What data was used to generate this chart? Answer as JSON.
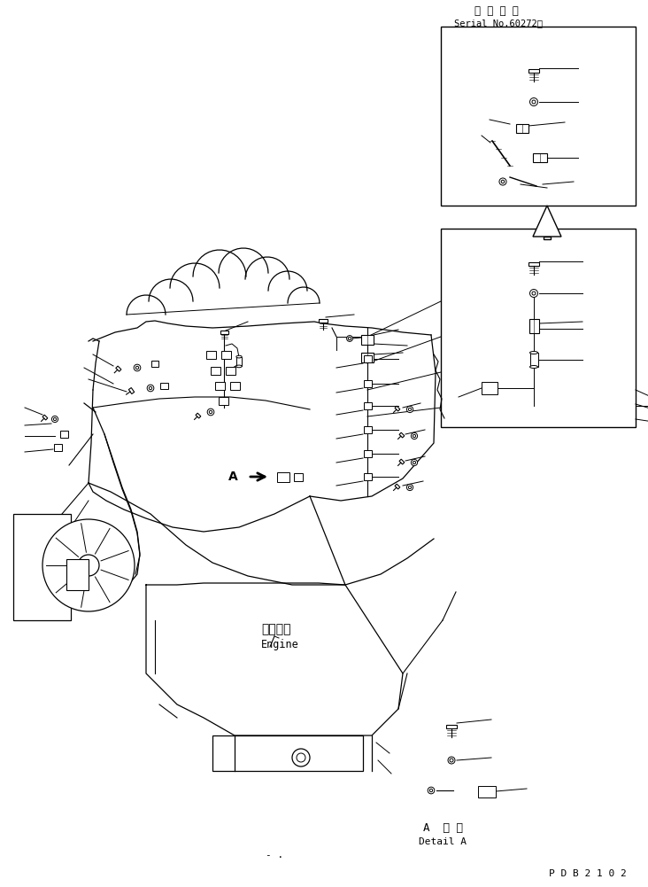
{
  "title_jp": "適 用 号 機",
  "title_serial": "Serial No.60272～",
  "label_engine_jp": "エンジン",
  "label_engine_en": "Engine",
  "label_detail_a": "A  詳 細",
  "label_detail_a_en": "Detail A",
  "label_a": "A",
  "label_pdb": "P D B 2 1 0 2",
  "bg_color": "#ffffff",
  "line_color": "#000000"
}
